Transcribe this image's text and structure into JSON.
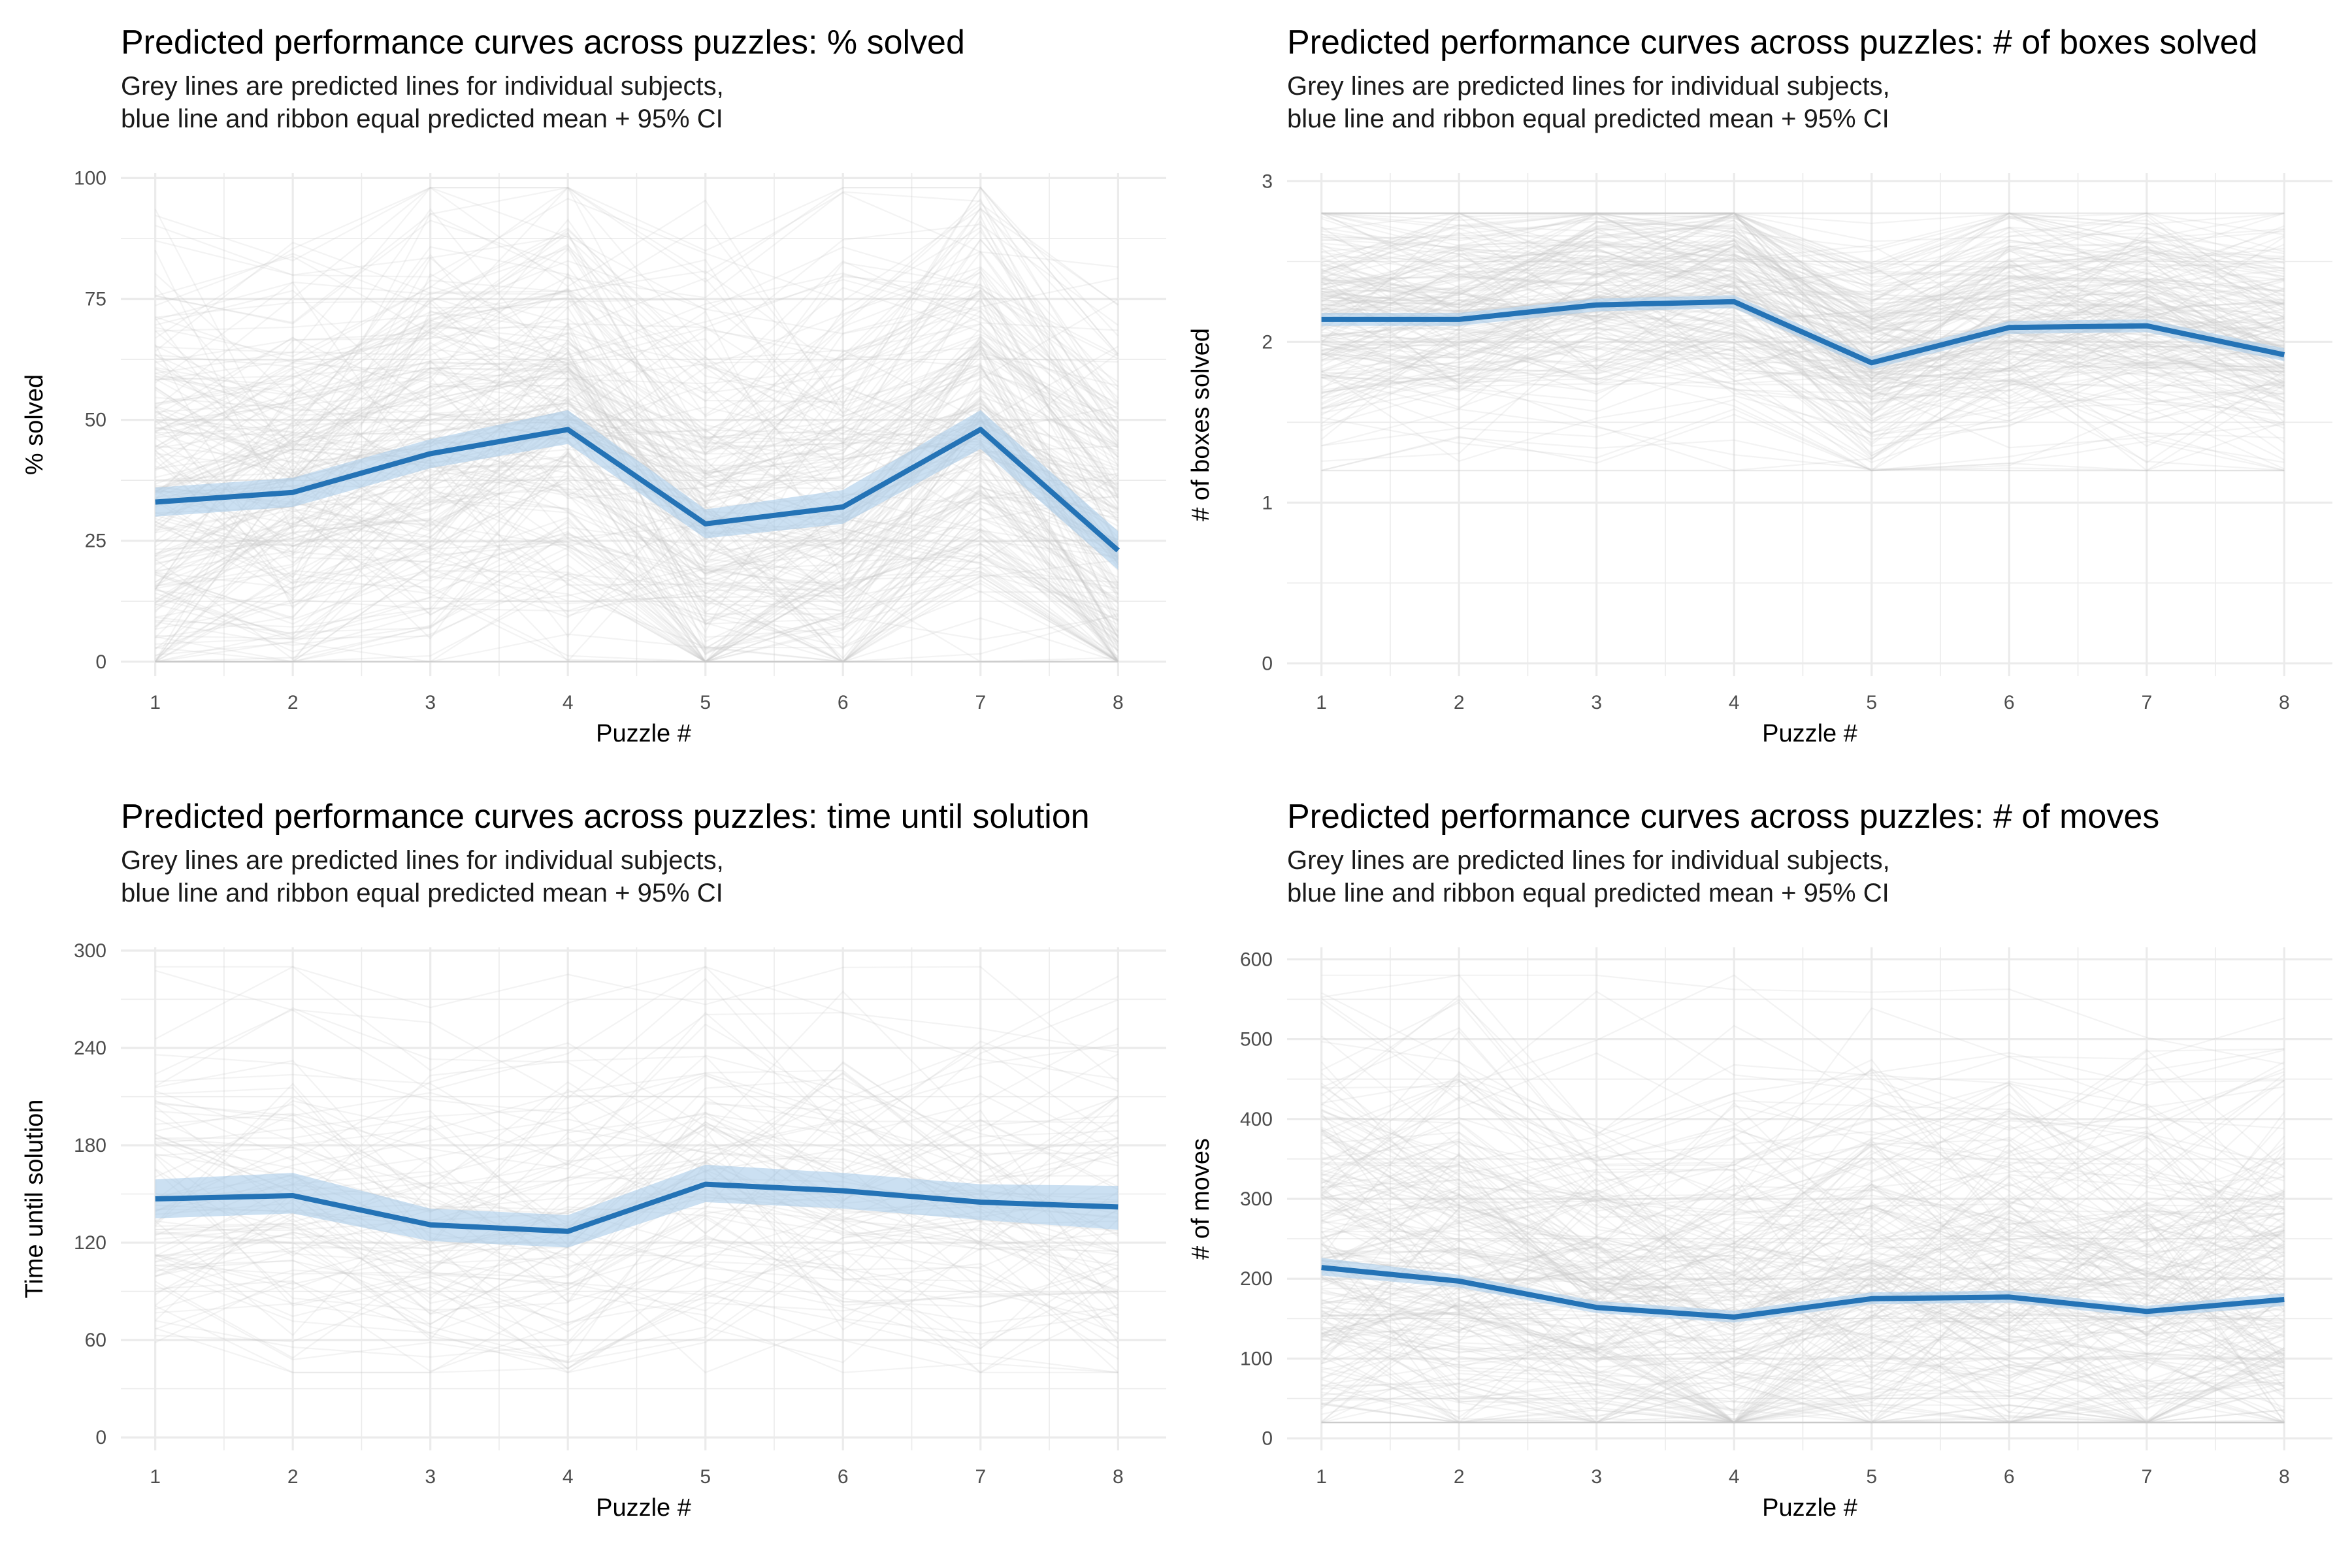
{
  "figure": {
    "grid": true,
    "colors": {
      "background": "#ffffff",
      "grid": "#ebebeb",
      "subject_lines": "#c8c8c8",
      "mean_line": "#2473b6",
      "ribbon": "#a9cbe9"
    }
  },
  "chart_data": [
    {
      "type": "line",
      "title": "Predicted performance curves across puzzles: % solved",
      "subtitle_lines": [
        "Grey lines are predicted lines for individual subjects,",
        "blue line and ribbon equal predicted mean + 95% CI"
      ],
      "xlabel": "Puzzle #",
      "ylabel": "% solved",
      "x": [
        1,
        2,
        3,
        4,
        5,
        6,
        7,
        8
      ],
      "xlim": [
        0.75,
        8.35
      ],
      "ylim": [
        -3,
        101
      ],
      "yticks": [
        0,
        25,
        50,
        75,
        100
      ],
      "series": [
        {
          "values": [
            33,
            35,
            43,
            48,
            28.5,
            32,
            48,
            23
          ],
          "lower": [
            30,
            32,
            40,
            45,
            25.5,
            28.5,
            44,
            19
          ],
          "upper": [
            36,
            38,
            46,
            52,
            31.5,
            35.5,
            52,
            27
          ]
        }
      ],
      "subjects": {
        "count": 220,
        "min": 0,
        "max": 98
      }
    },
    {
      "type": "line",
      "title": "Predicted performance curves across puzzles: # of boxes solved",
      "subtitle_lines": [
        "Grey lines are predicted lines for individual subjects,",
        "blue line and ribbon equal predicted mean + 95% CI"
      ],
      "xlabel": "Puzzle #",
      "ylabel": "# of boxes solved",
      "x": [
        1,
        2,
        3,
        4,
        5,
        6,
        7,
        8
      ],
      "xlim": [
        0.75,
        8.35
      ],
      "ylim": [
        -0.08,
        3.05
      ],
      "yticks": [
        0,
        1,
        2,
        3
      ],
      "series": [
        {
          "values": [
            2.14,
            2.14,
            2.23,
            2.25,
            1.87,
            2.09,
            2.1,
            1.92
          ],
          "lower": [
            2.1,
            2.1,
            2.19,
            2.21,
            1.83,
            2.05,
            2.06,
            1.88
          ],
          "upper": [
            2.18,
            2.18,
            2.27,
            2.29,
            1.91,
            2.13,
            2.14,
            1.96
          ]
        }
      ],
      "subjects": {
        "count": 200,
        "min": 1.2,
        "max": 2.8
      }
    },
    {
      "type": "line",
      "title": "Predicted performance curves across puzzles: time until solution",
      "subtitle_lines": [
        "Grey lines are predicted lines for individual subjects,",
        "blue line and ribbon equal predicted mean + 95% CI"
      ],
      "xlabel": "Puzzle #",
      "ylabel": "Time until solution",
      "x": [
        1,
        2,
        3,
        4,
        5,
        6,
        7,
        8
      ],
      "xlim": [
        0.75,
        8.35
      ],
      "ylim": [
        -8,
        302
      ],
      "yticks": [
        0,
        60,
        120,
        180,
        240,
        300
      ],
      "series": [
        {
          "values": [
            147,
            149,
            131,
            127,
            156,
            152,
            145,
            142
          ],
          "lower": [
            135,
            138,
            121,
            117,
            145,
            141,
            134,
            128
          ],
          "upper": [
            159,
            163,
            141,
            137,
            168,
            163,
            156,
            155
          ]
        }
      ],
      "subjects": {
        "count": 90,
        "min": 40,
        "max": 290
      }
    },
    {
      "type": "line",
      "title": "Predicted performance curves across puzzles: # of moves",
      "subtitle_lines": [
        "Grey lines are predicted lines for individual subjects,",
        "blue line and ribbon equal predicted mean + 95% CI"
      ],
      "xlabel": "Puzzle #",
      "ylabel": "# of moves",
      "x": [
        1,
        2,
        3,
        4,
        5,
        6,
        7,
        8
      ],
      "xlim": [
        0.75,
        8.35
      ],
      "ylim": [
        -15,
        615
      ],
      "yticks": [
        0,
        100,
        200,
        300,
        400,
        500,
        600
      ],
      "series": [
        {
          "values": [
            214,
            197,
            164,
            152,
            175,
            177,
            159,
            174
          ],
          "lower": [
            204,
            189,
            157,
            145,
            168,
            170,
            152,
            166
          ],
          "upper": [
            226,
            205,
            172,
            160,
            183,
            185,
            166,
            182
          ]
        }
      ],
      "subjects": {
        "count": 220,
        "min": 20,
        "max": 580
      }
    }
  ]
}
